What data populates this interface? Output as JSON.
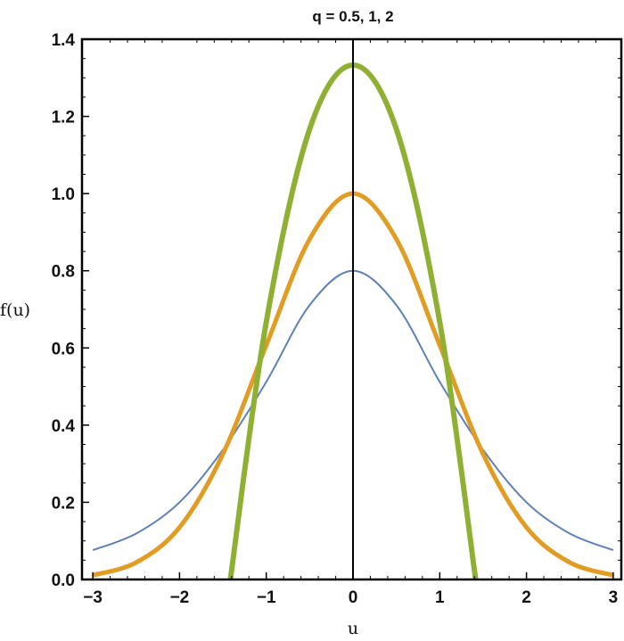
{
  "chart_data": {
    "type": "line",
    "title": "q = 0.5, 1, 2",
    "xlabel": "u",
    "ylabel": "f(u)",
    "xlim": [
      -3,
      3
    ],
    "ylim": [
      0,
      1.4
    ],
    "xticks": [
      -3,
      -2,
      -1,
      0,
      1,
      2,
      3
    ],
    "xtick_labels": [
      "−3",
      "−2",
      "−1",
      "0",
      "1",
      "2",
      "3"
    ],
    "yticks": [
      0.0,
      0.2,
      0.4,
      0.6,
      0.8,
      1.0,
      1.2,
      1.4
    ],
    "ytick_labels": [
      "0.0",
      "0.2",
      "0.4",
      "0.6",
      "0.8",
      "1.0",
      "1.2",
      "1.4"
    ],
    "grid": false,
    "legend": null,
    "x": [
      -3,
      -2.5,
      -2,
      -1.5,
      -1,
      -0.5,
      0,
      0.5,
      1,
      1.5,
      2,
      2.5,
      3
    ],
    "series": [
      {
        "name": "q = 0.5",
        "color": "#5e81b5",
        "line_width": 2,
        "values": [
          0.076,
          0.119,
          0.2,
          0.336,
          0.512,
          0.711,
          0.8,
          0.711,
          0.512,
          0.336,
          0.2,
          0.119,
          0.076
        ]
      },
      {
        "name": "q = 1",
        "color": "#e19c24",
        "line_width": 5,
        "values": [
          0.011,
          0.044,
          0.135,
          0.325,
          0.607,
          0.882,
          1.0,
          0.882,
          0.607,
          0.325,
          0.135,
          0.044,
          0.011
        ]
      },
      {
        "name": "q = 2",
        "color": "#8fb032",
        "line_width": 6,
        "support": [
          -1.414,
          1.414
        ],
        "values": [
          null,
          null,
          null,
          null,
          0.667,
          1.167,
          1.333,
          1.167,
          0.667,
          null,
          null,
          null,
          null
        ]
      }
    ],
    "annotations": [
      "vertical line at u = 0"
    ]
  }
}
